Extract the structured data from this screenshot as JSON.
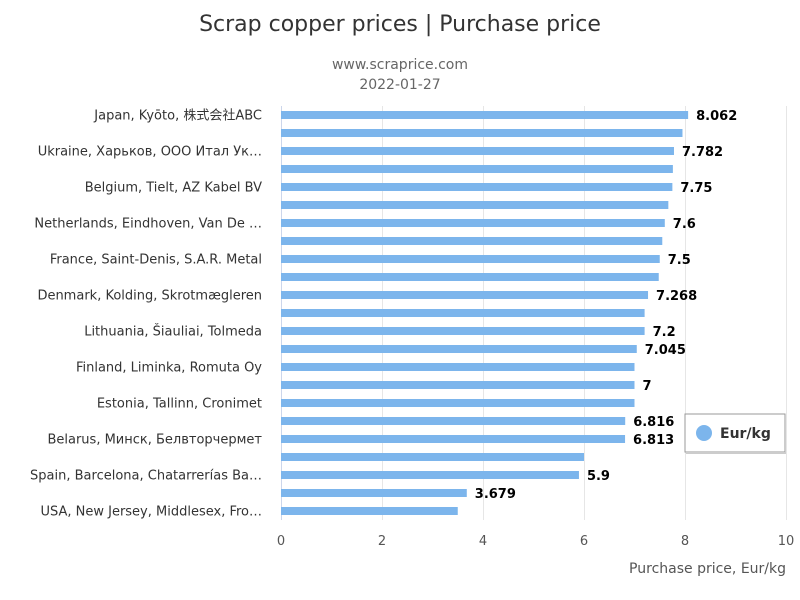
{
  "chart_data": {
    "type": "bar",
    "orientation": "horizontal",
    "title": "Scrap copper prices | Purchase price",
    "subtitle": "www.scraprice.com",
    "date": "2022-01-27",
    "xlabel": "Purchase price, Eur/kg",
    "xlim": [
      0,
      10
    ],
    "xticks": [
      "0",
      "2",
      "4",
      "6",
      "8",
      "10"
    ],
    "grid": true,
    "legend_position": "right",
    "series_color": "#7cb5ec",
    "series": [
      {
        "name": "Eur/kg"
      }
    ],
    "bars": [
      {
        "category": "Japan, Kyōto, 株式会社ABC",
        "value": 8.062,
        "label": "8.062"
      },
      {
        "category": "",
        "value": 7.95,
        "label": ""
      },
      {
        "category": "Ukraine, Харьков, ООО Итал Ук…",
        "value": 7.782,
        "label": "7.782"
      },
      {
        "category": "",
        "value": 7.76,
        "label": ""
      },
      {
        "category": "Belgium, Tielt, AZ Kabel BV",
        "value": 7.75,
        "label": "7.75"
      },
      {
        "category": "",
        "value": 7.67,
        "label": ""
      },
      {
        "category": "Netherlands, Eindhoven, Van De …",
        "value": 7.6,
        "label": "7.6"
      },
      {
        "category": "",
        "value": 7.55,
        "label": ""
      },
      {
        "category": "France, Saint-Denis, S.A.R. Metal",
        "value": 7.5,
        "label": "7.5"
      },
      {
        "category": "",
        "value": 7.48,
        "label": ""
      },
      {
        "category": "Denmark, Kolding, Skrotmægleren",
        "value": 7.268,
        "label": "7.268"
      },
      {
        "category": "",
        "value": 7.2,
        "label": ""
      },
      {
        "category": "Lithuania, Šiauliai, Tolmeda",
        "value": 7.2,
        "label": "7.2"
      },
      {
        "category": "",
        "value": 7.045,
        "label": "7.045"
      },
      {
        "category": "Finland, Liminka, Romuta Oy",
        "value": 7.0,
        "label": ""
      },
      {
        "category": "",
        "value": 7.0,
        "label": "7"
      },
      {
        "category": "Estonia, Tallinn, Cronimet",
        "value": 7.0,
        "label": ""
      },
      {
        "category": "",
        "value": 6.816,
        "label": "6.816"
      },
      {
        "category": "Belarus, Минск, Белвторчермет",
        "value": 6.813,
        "label": "6.813"
      },
      {
        "category": "",
        "value": 6.0,
        "label": ""
      },
      {
        "category": "Spain, Barcelona, Chatarrerías Ba…",
        "value": 5.9,
        "label": "5.9"
      },
      {
        "category": "",
        "value": 3.679,
        "label": "3.679"
      },
      {
        "category": "USA, New Jersey, Middlesex, Fro…",
        "value": 3.5,
        "label": ""
      }
    ]
  }
}
